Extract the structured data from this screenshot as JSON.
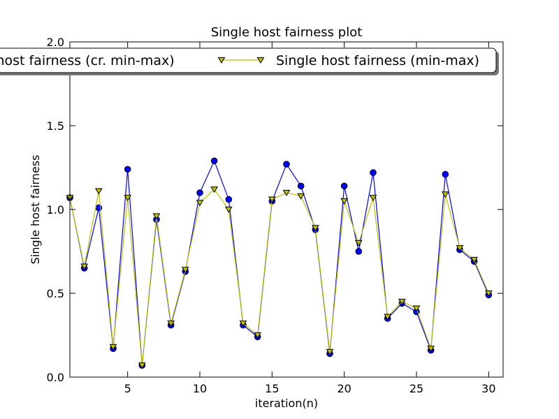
{
  "chart_data": {
    "type": "line",
    "title": "Single host fairness plot",
    "xlabel": "iteration(n)",
    "ylabel": "Single host fairness",
    "xlim": [
      1,
      31
    ],
    "ylim": [
      0,
      2.0
    ],
    "xticks": [
      5,
      10,
      15,
      20,
      25,
      30
    ],
    "xtick_labels": [
      "5",
      "10",
      "15",
      "20",
      "25",
      "30"
    ],
    "yticks": [
      0.0,
      0.5,
      1.0,
      1.5,
      2.0
    ],
    "ytick_labels": [
      "0.0",
      "0.5",
      "1.0",
      "1.5",
      "2.0"
    ],
    "grid": false,
    "legend_placement": "top (overflowing left edge)",
    "x": [
      1,
      2,
      3,
      4,
      5,
      6,
      7,
      8,
      9,
      10,
      11,
      12,
      13,
      14,
      15,
      16,
      17,
      18,
      19,
      20,
      21,
      22,
      23,
      24,
      25,
      26,
      27,
      28,
      29,
      30
    ],
    "series": [
      {
        "name": "Single host fairness (cr. min-max)",
        "color": "#0000ff",
        "marker": "circle",
        "values": [
          1.07,
          0.65,
          1.01,
          0.17,
          1.24,
          0.07,
          0.94,
          0.31,
          0.63,
          1.1,
          1.29,
          1.06,
          0.31,
          0.24,
          1.05,
          1.27,
          1.14,
          0.88,
          0.14,
          1.14,
          0.75,
          1.22,
          0.35,
          0.44,
          0.39,
          0.16,
          1.21,
          0.76,
          0.69,
          0.49
        ]
      },
      {
        "name": "Single host fairness (min-max)",
        "color": "#bfbf00",
        "marker": "triangle-down",
        "values": [
          1.07,
          0.66,
          1.11,
          0.18,
          1.07,
          0.07,
          0.96,
          0.32,
          0.64,
          1.04,
          1.12,
          1.0,
          0.32,
          0.25,
          1.06,
          1.1,
          1.08,
          0.89,
          0.15,
          1.05,
          0.8,
          1.07,
          0.36,
          0.45,
          0.41,
          0.17,
          1.09,
          0.77,
          0.7,
          0.5
        ]
      }
    ]
  }
}
